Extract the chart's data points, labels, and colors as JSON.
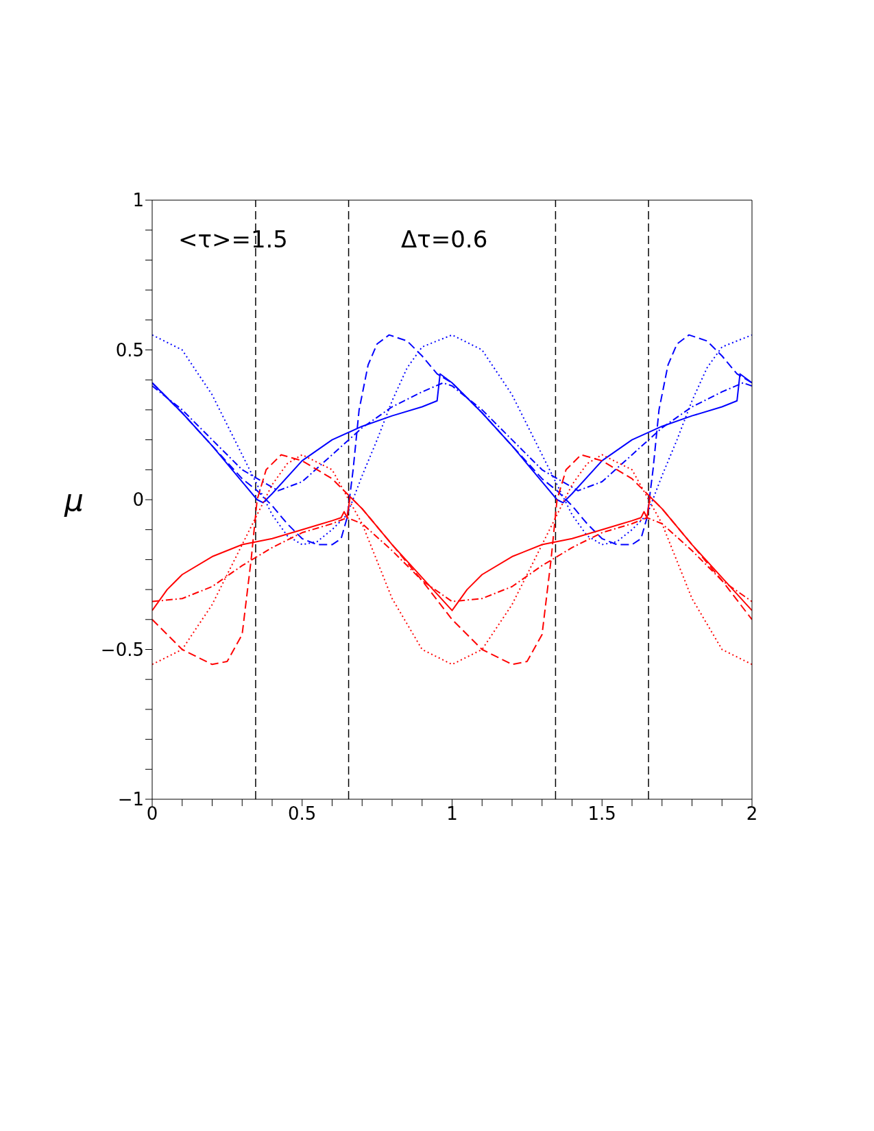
{
  "chart_data": {
    "type": "line",
    "ylabel": "μ",
    "xlim": [
      0,
      2
    ],
    "ylim": [
      -1,
      1
    ],
    "xticks": [
      0,
      {
        "value": 0.1,
        "label": null
      },
      {
        "value": 0.2,
        "label": null
      },
      {
        "value": 0.3,
        "label": null
      },
      {
        "value": 0.4,
        "label": null
      },
      0.5,
      {
        "value": 0.6,
        "label": null
      },
      {
        "value": 0.7,
        "label": null
      },
      {
        "value": 0.8,
        "label": null
      },
      {
        "value": 0.9,
        "label": null
      },
      1,
      {
        "value": 1.1,
        "label": null
      },
      {
        "value": 1.2,
        "label": null
      },
      {
        "value": 1.3,
        "label": null
      },
      {
        "value": 1.4,
        "label": null
      },
      1.5,
      {
        "value": 1.6,
        "label": null
      },
      {
        "value": 1.7,
        "label": null
      },
      {
        "value": 1.8,
        "label": null
      },
      {
        "value": 1.9,
        "label": null
      },
      2
    ],
    "yticks": [
      -1,
      {
        "value": -0.9,
        "label": null
      },
      {
        "value": -0.8,
        "label": null
      },
      {
        "value": -0.7,
        "label": null
      },
      {
        "value": -0.6,
        "label": null
      },
      -0.5,
      {
        "value": -0.4,
        "label": null
      },
      {
        "value": -0.3,
        "label": null
      },
      {
        "value": -0.2,
        "label": null
      },
      {
        "value": -0.1,
        "label": null
      },
      0,
      {
        "value": 0.1,
        "label": null
      },
      {
        "value": 0.2,
        "label": null
      },
      {
        "value": 0.3,
        "label": null
      },
      {
        "value": 0.4,
        "label": null
      },
      0.5,
      {
        "value": 0.6,
        "label": null
      },
      {
        "value": 0.7,
        "label": null
      },
      {
        "value": 0.8,
        "label": null
      },
      {
        "value": 0.9,
        "label": null
      },
      1
    ],
    "grid": false,
    "legend": false,
    "marker": "none",
    "annotations": [
      "<τ>=1.5",
      "Δτ=0.6"
    ],
    "ref_lines": [
      {
        "axis": "x",
        "value": 0.345,
        "color": "#000000",
        "line_style": "dashed"
      },
      {
        "axis": "x",
        "value": 0.655,
        "color": "#000000",
        "line_style": "dashed"
      },
      {
        "axis": "x",
        "value": 1.345,
        "color": "#000000",
        "line_style": "dashed"
      },
      {
        "axis": "x",
        "value": 1.655,
        "color": "#000000",
        "line_style": "dashed"
      }
    ],
    "series": [
      {
        "color": "#0000ff",
        "line_style": "solid",
        "x": [
          0,
          0.1,
          0.2,
          0.3,
          0.35,
          0.37,
          0.4,
          0.5,
          0.6,
          0.7,
          0.8,
          0.9,
          0.95,
          0.96,
          1.0,
          1.1,
          1.2,
          1.3,
          1.35,
          1.37,
          1.4,
          1.5,
          1.6,
          1.7,
          1.8,
          1.9,
          1.95,
          1.96,
          2.0
        ],
        "values": [
          0.39,
          0.29,
          0.18,
          0.06,
          0.0,
          -0.01,
          0.02,
          0.13,
          0.2,
          0.245,
          0.28,
          0.31,
          0.33,
          0.42,
          0.39,
          0.29,
          0.18,
          0.06,
          0.0,
          -0.01,
          0.02,
          0.13,
          0.2,
          0.245,
          0.28,
          0.31,
          0.33,
          0.42,
          0.39
        ]
      },
      {
        "color": "#0000ff",
        "line_style": "dashed",
        "x": [
          0,
          0.1,
          0.2,
          0.3,
          0.35,
          0.4,
          0.45,
          0.5,
          0.55,
          0.6,
          0.63,
          0.65,
          0.67,
          0.69,
          0.72,
          0.75,
          0.79,
          0.85,
          0.9,
          0.95,
          1.0,
          1.1,
          1.2,
          1.3,
          1.35,
          1.4,
          1.45,
          1.5,
          1.55,
          1.6,
          1.63,
          1.65,
          1.67,
          1.69,
          1.72,
          1.75,
          1.79,
          1.85,
          1.9,
          1.95,
          2.0
        ],
        "values": [
          0.39,
          0.29,
          0.18,
          0.07,
          0.03,
          -0.02,
          -0.08,
          -0.13,
          -0.15,
          -0.15,
          -0.13,
          -0.06,
          0.1,
          0.3,
          0.45,
          0.52,
          0.55,
          0.53,
          0.48,
          0.42,
          0.39,
          0.29,
          0.18,
          0.07,
          0.03,
          -0.02,
          -0.08,
          -0.13,
          -0.15,
          -0.15,
          -0.13,
          -0.06,
          0.1,
          0.3,
          0.45,
          0.52,
          0.55,
          0.53,
          0.48,
          0.42,
          0.39
        ]
      },
      {
        "color": "#0000ff",
        "line_style": "dotted",
        "x": [
          0,
          0.1,
          0.2,
          0.3,
          0.35,
          0.4,
          0.45,
          0.5,
          0.55,
          0.6,
          0.65,
          0.7,
          0.75,
          0.8,
          0.85,
          0.9,
          1.0,
          1.1,
          1.2,
          1.3,
          1.35,
          1.4,
          1.45,
          1.5,
          1.55,
          1.6,
          1.65,
          1.7,
          1.75,
          1.8,
          1.85,
          1.9,
          2.0
        ],
        "values": [
          0.55,
          0.5,
          0.35,
          0.15,
          0.05,
          -0.05,
          -0.12,
          -0.15,
          -0.14,
          -0.1,
          -0.05,
          0.08,
          0.2,
          0.33,
          0.44,
          0.51,
          0.55,
          0.5,
          0.35,
          0.15,
          0.05,
          -0.05,
          -0.12,
          -0.15,
          -0.14,
          -0.1,
          -0.05,
          0.08,
          0.2,
          0.33,
          0.44,
          0.51,
          0.55
        ]
      },
      {
        "color": "#0000ff",
        "line_style": "dashdot",
        "x": [
          0,
          0.1,
          0.2,
          0.3,
          0.42,
          0.5,
          0.6,
          0.7,
          0.8,
          0.9,
          0.97,
          1.0,
          1.1,
          1.2,
          1.3,
          1.42,
          1.5,
          1.6,
          1.7,
          1.8,
          1.9,
          1.97,
          2.0
        ],
        "values": [
          0.38,
          0.3,
          0.2,
          0.1,
          0.03,
          0.06,
          0.15,
          0.24,
          0.31,
          0.36,
          0.39,
          0.38,
          0.3,
          0.2,
          0.1,
          0.03,
          0.06,
          0.15,
          0.24,
          0.31,
          0.36,
          0.39,
          0.38
        ]
      },
      {
        "color": "#ff0000",
        "line_style": "solid",
        "x": [
          0,
          0.05,
          0.1,
          0.2,
          0.3,
          0.4,
          0.5,
          0.6,
          0.63,
          0.64,
          0.65,
          0.66,
          0.7,
          0.8,
          0.9,
          1.0,
          1.05,
          1.1,
          1.2,
          1.3,
          1.4,
          1.5,
          1.6,
          1.63,
          1.64,
          1.65,
          1.66,
          1.7,
          1.8,
          1.9,
          2.0
        ],
        "values": [
          -0.37,
          -0.3,
          -0.25,
          -0.19,
          -0.15,
          -0.13,
          -0.1,
          -0.07,
          -0.06,
          -0.04,
          -0.06,
          0.01,
          -0.03,
          -0.15,
          -0.26,
          -0.37,
          -0.3,
          -0.25,
          -0.19,
          -0.15,
          -0.13,
          -0.1,
          -0.07,
          -0.06,
          -0.04,
          -0.06,
          0.01,
          -0.03,
          -0.15,
          -0.26,
          -0.37
        ]
      },
      {
        "color": "#ff0000",
        "line_style": "dashed",
        "x": [
          0,
          0.1,
          0.2,
          0.25,
          0.3,
          0.33,
          0.35,
          0.38,
          0.43,
          0.5,
          0.6,
          0.65,
          0.7,
          0.8,
          0.9,
          1.0,
          1.1,
          1.2,
          1.25,
          1.3,
          1.33,
          1.35,
          1.38,
          1.43,
          1.5,
          1.6,
          1.65,
          1.7,
          1.8,
          1.9,
          2.0
        ],
        "values": [
          -0.4,
          -0.5,
          -0.55,
          -0.54,
          -0.45,
          -0.2,
          0.0,
          0.1,
          0.15,
          0.13,
          0.07,
          0.02,
          -0.03,
          -0.15,
          -0.27,
          -0.4,
          -0.5,
          -0.55,
          -0.54,
          -0.45,
          -0.2,
          0.0,
          0.1,
          0.15,
          0.13,
          0.07,
          0.02,
          -0.03,
          -0.15,
          -0.27,
          -0.4
        ]
      },
      {
        "color": "#ff0000",
        "line_style": "dotted",
        "x": [
          0,
          0.1,
          0.2,
          0.3,
          0.35,
          0.4,
          0.45,
          0.5,
          0.6,
          0.7,
          0.8,
          0.9,
          1.0,
          1.1,
          1.2,
          1.3,
          1.35,
          1.4,
          1.45,
          1.5,
          1.6,
          1.7,
          1.8,
          1.9,
          2.0
        ],
        "values": [
          -0.55,
          -0.5,
          -0.35,
          -0.15,
          -0.05,
          0.05,
          0.12,
          0.15,
          0.1,
          -0.08,
          -0.33,
          -0.5,
          -0.55,
          -0.5,
          -0.35,
          -0.15,
          -0.05,
          0.05,
          0.12,
          0.15,
          0.1,
          -0.08,
          -0.33,
          -0.5,
          -0.55
        ]
      },
      {
        "color": "#ff0000",
        "line_style": "dashdot",
        "x": [
          0,
          0.1,
          0.2,
          0.3,
          0.4,
          0.5,
          0.6,
          0.65,
          0.7,
          0.8,
          0.9,
          1.0,
          1.1,
          1.2,
          1.3,
          1.4,
          1.5,
          1.6,
          1.65,
          1.7,
          1.8,
          1.9,
          2.0
        ],
        "values": [
          -0.34,
          -0.33,
          -0.29,
          -0.22,
          -0.16,
          -0.11,
          -0.08,
          -0.06,
          -0.08,
          -0.17,
          -0.27,
          -0.34,
          -0.33,
          -0.29,
          -0.22,
          -0.16,
          -0.11,
          -0.08,
          -0.06,
          -0.08,
          -0.17,
          -0.27,
          -0.34
        ]
      }
    ]
  }
}
